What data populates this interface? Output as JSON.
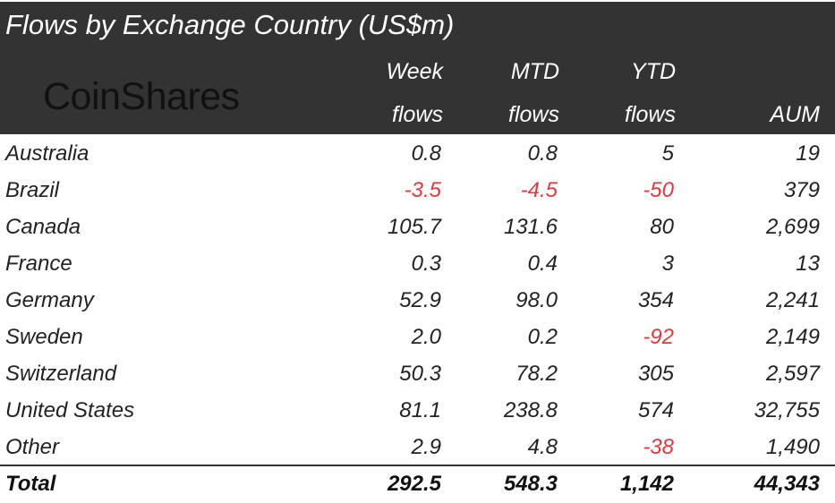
{
  "title": "Flows by Exchange Country (US$m)",
  "logo": "CoinShares",
  "colors": {
    "header_bg": "#333333",
    "negative": "#e0393e"
  },
  "chart_data": {
    "type": "table",
    "title": "Flows by Exchange Country (US$m)",
    "columns": [
      {
        "top": "Week",
        "bottom": "flows"
      },
      {
        "top": "MTD",
        "bottom": "flows"
      },
      {
        "top": "YTD",
        "bottom": "flows"
      },
      {
        "top": "",
        "bottom": "AUM"
      }
    ],
    "rows": [
      {
        "country": "Australia",
        "week": "0.8",
        "mtd": "0.8",
        "ytd": "5",
        "aum": "19"
      },
      {
        "country": "Brazil",
        "week": "-3.5",
        "mtd": "-4.5",
        "ytd": "-50",
        "aum": "379"
      },
      {
        "country": "Canada",
        "week": "105.7",
        "mtd": "131.6",
        "ytd": "80",
        "aum": "2,699"
      },
      {
        "country": "France",
        "week": "0.3",
        "mtd": "0.4",
        "ytd": "3",
        "aum": "13"
      },
      {
        "country": "Germany",
        "week": "52.9",
        "mtd": "98.0",
        "ytd": "354",
        "aum": "2,241"
      },
      {
        "country": "Sweden",
        "week": "2.0",
        "mtd": "0.2",
        "ytd": "-92",
        "aum": "2,149"
      },
      {
        "country": "Switzerland",
        "week": "50.3",
        "mtd": "78.2",
        "ytd": "305",
        "aum": "2,597"
      },
      {
        "country": "United States",
        "week": "81.1",
        "mtd": "238.8",
        "ytd": "574",
        "aum": "32,755"
      },
      {
        "country": "Other",
        "week": "2.9",
        "mtd": "4.8",
        "ytd": "-38",
        "aum": "1,490"
      }
    ],
    "total": {
      "country": "Total",
      "week": "292.5",
      "mtd": "548.3",
      "ytd": "1,142",
      "aum": "44,343"
    }
  }
}
